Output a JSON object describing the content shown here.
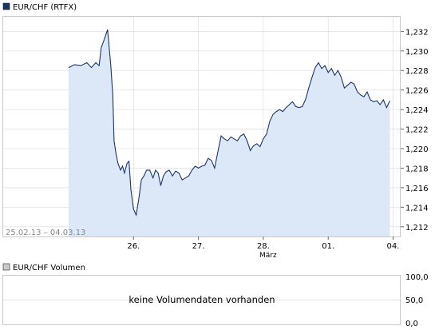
{
  "chart_data": [
    {
      "type": "area",
      "legend": "EUR/CHF (RTFX)",
      "date_range": "25.02.13 – 04.03.13",
      "ylim": [
        1.211,
        1.2335
      ],
      "y_ticks": [
        "1,212",
        "1,214",
        "1,216",
        "1,218",
        "1,220",
        "1,222",
        "1,224",
        "1,226",
        "1,228",
        "1,230",
        "1,232"
      ],
      "x_ticks": [
        "26.",
        "27.",
        "28.",
        "01.",
        "04."
      ],
      "x_sublabel": "März",
      "grid": true,
      "colors": {
        "line": "#1a3466",
        "fill": "#dce8f8",
        "grid": "#d9d9d9"
      },
      "series": [
        {
          "name": "EUR/CHF (RTFX)",
          "x": [
            0,
            0.09,
            0.19,
            0.28,
            0.35,
            0.42,
            0.47,
            0.5,
            0.55,
            0.6,
            0.65,
            0.68,
            0.7,
            0.73,
            0.76,
            0.8,
            0.83,
            0.86,
            0.9,
            0.93,
            0.96,
            1,
            1.04,
            1.08,
            1.12,
            1.16,
            1.2,
            1.25,
            1.3,
            1.34,
            1.38,
            1.42,
            1.46,
            1.5,
            1.55,
            1.6,
            1.65,
            1.7,
            1.75,
            1.8,
            1.85,
            1.9,
            1.95,
            2,
            2.05,
            2.1,
            2.15,
            2.2,
            2.25,
            2.3,
            2.35,
            2.4,
            2.45,
            2.5,
            2.55,
            2.6,
            2.65,
            2.7,
            2.75,
            2.8,
            2.85,
            2.9,
            2.95,
            3,
            3.05,
            3.1,
            3.15,
            3.2,
            3.25,
            3.3,
            3.35,
            3.4,
            3.45,
            3.5,
            3.55,
            3.6,
            3.65,
            3.7,
            3.75,
            3.8,
            3.85,
            3.9,
            3.95,
            4,
            4.05,
            4.1,
            4.15,
            4.2,
            4.25,
            4.3,
            4.35,
            4.4,
            4.45,
            4.5,
            4.55,
            4.6,
            4.65,
            4.7,
            4.75,
            4.8,
            4.85,
            4.9,
            4.95
          ],
          "values": [
            1.2283,
            1.2286,
            1.2285,
            1.2288,
            1.2283,
            1.2288,
            1.2285,
            1.2303,
            1.2312,
            1.2322,
            1.2285,
            1.2255,
            1.2208,
            1.2195,
            1.2185,
            1.2178,
            1.2182,
            1.2175,
            1.2185,
            1.2187,
            1.2158,
            1.2138,
            1.2132,
            1.2148,
            1.2168,
            1.2172,
            1.2178,
            1.2178,
            1.217,
            1.2178,
            1.2175,
            1.2162,
            1.2172,
            1.2176,
            1.2178,
            1.2172,
            1.2177,
            1.2175,
            1.2168,
            1.217,
            1.2172,
            1.2178,
            1.2182,
            1.218,
            1.2182,
            1.2183,
            1.219,
            1.2188,
            1.218,
            1.2197,
            1.2213,
            1.221,
            1.2208,
            1.2212,
            1.221,
            1.2208,
            1.2213,
            1.2215,
            1.2208,
            1.2198,
            1.2203,
            1.2205,
            1.2202,
            1.221,
            1.2215,
            1.2228,
            1.2235,
            1.2238,
            1.224,
            1.2238,
            1.2242,
            1.2245,
            1.2248,
            1.2243,
            1.2242,
            1.2243,
            1.225,
            1.2262,
            1.2273,
            1.2283,
            1.2288,
            1.2282,
            1.2285,
            1.2278,
            1.2282,
            1.2275,
            1.228,
            1.2273,
            1.2262,
            1.2265,
            1.2268,
            1.2266,
            1.2258,
            1.2255,
            1.2253,
            1.2258,
            1.225,
            1.2248,
            1.2249,
            1.2245,
            1.225,
            1.2242,
            1.2249
          ]
        }
      ]
    },
    {
      "type": "bar",
      "legend": "EUR/CHF Volumen",
      "y_ticks": [
        "100,0",
        "50,0",
        "0,0"
      ],
      "message": "keine Volumendaten vorhanden",
      "grid": true
    }
  ]
}
